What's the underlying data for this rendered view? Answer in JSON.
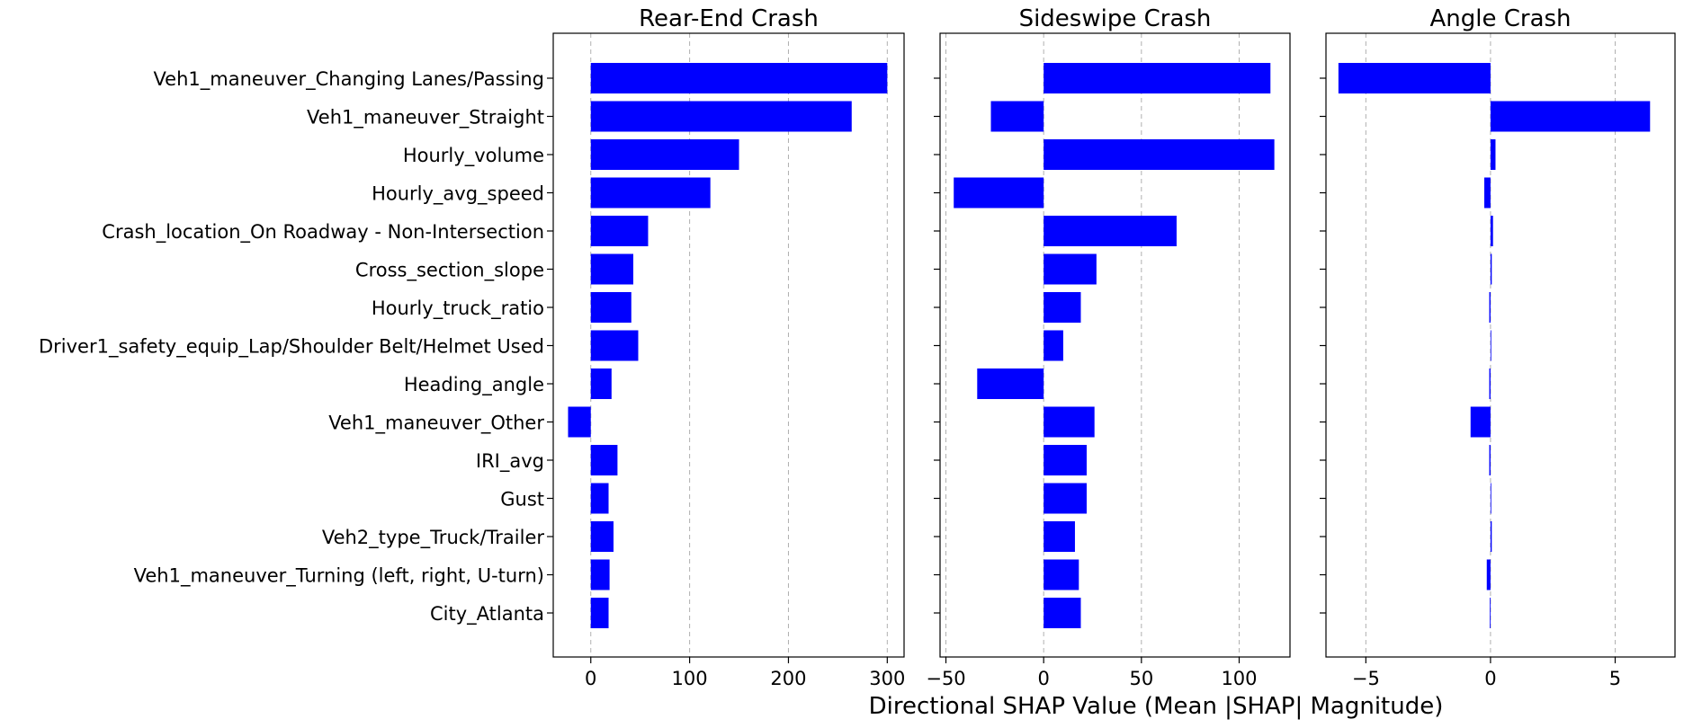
{
  "chart_data": {
    "type": "bar",
    "orientation": "horizontal",
    "shared_xlabel": "Directional SHAP Value (Mean |SHAP| Magnitude)",
    "bar_color": "#0000ff",
    "grid": "x-dashed",
    "categories": [
      "Veh1_maneuver_Changing Lanes/Passing",
      "Veh1_maneuver_Straight",
      "Hourly_volume",
      "Hourly_avg_speed",
      "Crash_location_On Roadway - Non-Intersection",
      "Cross_section_slope",
      "Hourly_truck_ratio",
      "Driver1_safety_equip_Lap/Shoulder Belt/Helmet Used",
      "Heading_angle",
      "Veh1_maneuver_Other",
      "IRI_avg",
      "Gust",
      "Veh2_type_Truck/Trailer",
      "Veh1_maneuver_Turning (left, right, U-turn)",
      "City_Atlanta"
    ],
    "panels": [
      {
        "title": "Rear-End Crash",
        "xlim": [
          -38,
          317
        ],
        "xticks": [
          0,
          100,
          200,
          300
        ],
        "xtick_labels": [
          "0",
          "100",
          "200",
          "300"
        ],
        "values": [
          300,
          264,
          150,
          121,
          58,
          43,
          41,
          48,
          21,
          -23,
          27,
          18,
          23,
          19,
          18
        ]
      },
      {
        "title": "Sideswipe Crash",
        "xlim": [
          -53,
          126
        ],
        "xticks": [
          -50,
          0,
          50,
          100
        ],
        "xtick_labels": [
          "−50",
          "0",
          "50",
          "100"
        ],
        "values": [
          116,
          -27,
          118,
          -46,
          68,
          27,
          19,
          10,
          -34,
          26,
          22,
          22,
          16,
          18,
          19
        ]
      },
      {
        "title": "Angle Crash",
        "xlim": [
          -6.6,
          7.4
        ],
        "xticks": [
          -5,
          0,
          5
        ],
        "xtick_labels": [
          "−5",
          "0",
          "5"
        ],
        "values": [
          -6.1,
          6.4,
          0.2,
          -0.25,
          0.1,
          0.05,
          -0.05,
          0.0,
          -0.05,
          -0.8,
          -0.05,
          0.0,
          0.05,
          -0.15,
          -0.03
        ]
      }
    ]
  }
}
